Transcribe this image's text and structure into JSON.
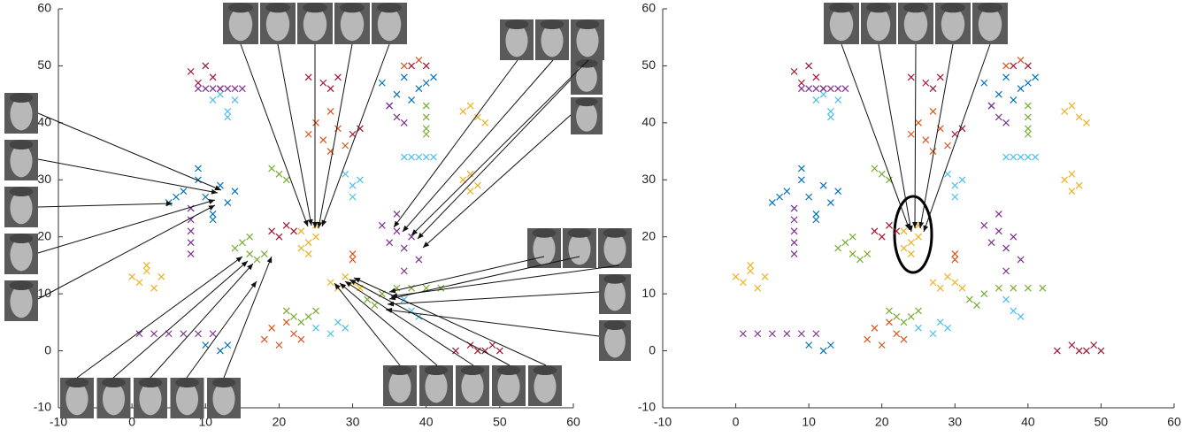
{
  "chart_data": [
    {
      "type": "scatter",
      "xlim": [
        -10,
        60
      ],
      "ylim": [
        -10,
        60
      ],
      "xticks": [
        -10,
        0,
        10,
        20,
        30,
        40,
        50,
        60
      ],
      "yticks": [
        -10,
        0,
        10,
        20,
        30,
        40,
        50,
        60
      ],
      "series": [
        {
          "color": "#0072BD",
          "x": [
            5,
            7,
            8,
            9,
            10,
            11,
            12,
            13,
            14,
            9,
            11,
            6,
            34,
            36,
            37,
            38,
            39,
            40,
            35,
            41,
            10,
            12,
            13
          ],
          "y": [
            26,
            28,
            25,
            30,
            27,
            24,
            29,
            26,
            28,
            32,
            23,
            27,
            47,
            45,
            48,
            44,
            46,
            47,
            43,
            48,
            1,
            0,
            1
          ]
        },
        {
          "color": "#A2142F",
          "x": [
            8,
            9,
            10,
            11,
            12,
            24,
            26,
            27,
            28,
            30,
            31,
            19,
            20,
            21,
            22,
            44,
            46,
            47,
            48,
            49,
            50,
            38,
            40
          ],
          "y": [
            49,
            47,
            50,
            48,
            46,
            48,
            47,
            46,
            48,
            38,
            39,
            21,
            20,
            22,
            21,
            0,
            1,
            0,
            0,
            1,
            0,
            50,
            50
          ]
        },
        {
          "color": "#4DBEEE",
          "x": [
            11,
            12,
            13,
            14,
            13,
            29,
            30,
            31,
            30,
            37,
            38,
            39,
            40,
            41,
            25,
            27,
            28,
            29,
            37,
            38,
            39
          ],
          "y": [
            44,
            45,
            42,
            44,
            41,
            31,
            29,
            30,
            27,
            34,
            34,
            34,
            34,
            34,
            4,
            3,
            5,
            4,
            9,
            7,
            6
          ]
        },
        {
          "color": "#D95319",
          "x": [
            24,
            25,
            26,
            27,
            28,
            29,
            27,
            18,
            19,
            20,
            21,
            22,
            23,
            30,
            30,
            37,
            39
          ],
          "y": [
            38,
            40,
            37,
            42,
            39,
            36,
            35,
            2,
            4,
            1,
            5,
            3,
            2,
            16,
            17,
            50,
            51
          ]
        },
        {
          "color": "#7E2F8E",
          "x": [
            9,
            10,
            11,
            12,
            13,
            14,
            15,
            8,
            8,
            8,
            8,
            8,
            34,
            35,
            36,
            37,
            38,
            39,
            36,
            37,
            1,
            3,
            5,
            7,
            9,
            11,
            35,
            36,
            37
          ],
          "y": [
            46,
            46,
            46,
            46,
            46,
            46,
            46,
            17,
            19,
            21,
            23,
            25,
            22,
            19,
            21,
            18,
            20,
            16,
            24,
            14,
            3,
            3,
            3,
            3,
            3,
            3,
            43,
            41,
            40
          ]
        },
        {
          "color": "#EDB120",
          "x": [
            23,
            24,
            25,
            24,
            25,
            23,
            0,
            1,
            2,
            3,
            4,
            2,
            27,
            28,
            29,
            30,
            31,
            45,
            46,
            47,
            48,
            45,
            46,
            47,
            46
          ],
          "y": [
            21,
            19,
            22,
            17,
            20,
            18,
            13,
            12,
            14,
            11,
            13,
            15,
            12,
            11,
            13,
            12,
            11,
            42,
            43,
            41,
            40,
            30,
            31,
            29,
            28
          ]
        },
        {
          "color": "#77AC30",
          "x": [
            14,
            15,
            16,
            17,
            16,
            18,
            21,
            22,
            23,
            24,
            25,
            32,
            33,
            34,
            36,
            38,
            40,
            42,
            40,
            40,
            40,
            40,
            19,
            20,
            21
          ],
          "y": [
            18,
            19,
            17,
            16,
            20,
            17,
            7,
            6,
            5,
            6,
            7,
            9,
            8,
            10,
            11,
            11,
            11,
            11,
            39,
            41,
            43,
            38,
            32,
            31,
            30
          ]
        }
      ]
    },
    {
      "type": "scatter",
      "xlim": [
        -10,
        60
      ],
      "ylim": [
        -10,
        60
      ],
      "xticks": [
        -10,
        0,
        10,
        20,
        30,
        40,
        50,
        60
      ],
      "yticks": [
        -10,
        0,
        10,
        20,
        30,
        40,
        50,
        60
      ],
      "series": [
        {
          "color": "#0072BD",
          "x": [
            5,
            7,
            8,
            9,
            10,
            11,
            12,
            13,
            14,
            9,
            11,
            6,
            34,
            36,
            37,
            38,
            39,
            40,
            35,
            41,
            10,
            12,
            13
          ],
          "y": [
            26,
            28,
            25,
            30,
            27,
            24,
            29,
            26,
            28,
            32,
            23,
            27,
            47,
            45,
            48,
            44,
            46,
            47,
            43,
            48,
            1,
            0,
            1
          ]
        },
        {
          "color": "#A2142F",
          "x": [
            8,
            9,
            10,
            11,
            12,
            24,
            26,
            27,
            28,
            30,
            31,
            19,
            20,
            21,
            22,
            44,
            46,
            47,
            48,
            49,
            50,
            38,
            40
          ],
          "y": [
            49,
            47,
            50,
            48,
            46,
            48,
            47,
            46,
            48,
            38,
            39,
            21,
            20,
            22,
            21,
            0,
            1,
            0,
            0,
            1,
            0,
            50,
            50
          ]
        },
        {
          "color": "#4DBEEE",
          "x": [
            11,
            12,
            13,
            14,
            13,
            29,
            30,
            31,
            30,
            37,
            38,
            39,
            40,
            41,
            25,
            27,
            28,
            29,
            37,
            38,
            39
          ],
          "y": [
            44,
            45,
            42,
            44,
            41,
            31,
            29,
            30,
            27,
            34,
            34,
            34,
            34,
            34,
            4,
            3,
            5,
            4,
            9,
            7,
            6
          ]
        },
        {
          "color": "#D95319",
          "x": [
            24,
            25,
            26,
            27,
            28,
            29,
            27,
            18,
            19,
            20,
            21,
            22,
            23,
            30,
            30,
            37,
            39
          ],
          "y": [
            38,
            40,
            37,
            42,
            39,
            36,
            35,
            2,
            4,
            1,
            5,
            3,
            2,
            16,
            17,
            50,
            51
          ]
        },
        {
          "color": "#7E2F8E",
          "x": [
            9,
            10,
            11,
            12,
            13,
            14,
            15,
            8,
            8,
            8,
            8,
            8,
            34,
            35,
            36,
            37,
            38,
            39,
            36,
            37,
            1,
            3,
            5,
            7,
            9,
            11,
            35,
            36,
            37
          ],
          "y": [
            46,
            46,
            46,
            46,
            46,
            46,
            46,
            17,
            19,
            21,
            23,
            25,
            22,
            19,
            21,
            18,
            20,
            16,
            24,
            14,
            3,
            3,
            3,
            3,
            3,
            3,
            43,
            41,
            40
          ]
        },
        {
          "color": "#EDB120",
          "x": [
            23,
            24,
            25,
            24,
            25,
            23,
            0,
            1,
            2,
            3,
            4,
            2,
            27,
            28,
            29,
            30,
            31,
            45,
            46,
            47,
            48,
            45,
            46,
            47,
            46
          ],
          "y": [
            21,
            19,
            22,
            17,
            20,
            18,
            13,
            12,
            14,
            11,
            13,
            15,
            12,
            11,
            13,
            12,
            11,
            42,
            43,
            41,
            40,
            30,
            31,
            29,
            28
          ]
        },
        {
          "color": "#77AC30",
          "x": [
            14,
            15,
            16,
            17,
            16,
            18,
            21,
            22,
            23,
            24,
            25,
            32,
            33,
            34,
            36,
            38,
            40,
            42,
            40,
            40,
            40,
            40,
            19,
            20,
            21
          ],
          "y": [
            18,
            19,
            17,
            16,
            20,
            17,
            7,
            6,
            5,
            6,
            7,
            9,
            8,
            10,
            11,
            11,
            11,
            11,
            39,
            41,
            43,
            38,
            32,
            31,
            30
          ]
        }
      ]
    }
  ]
}
